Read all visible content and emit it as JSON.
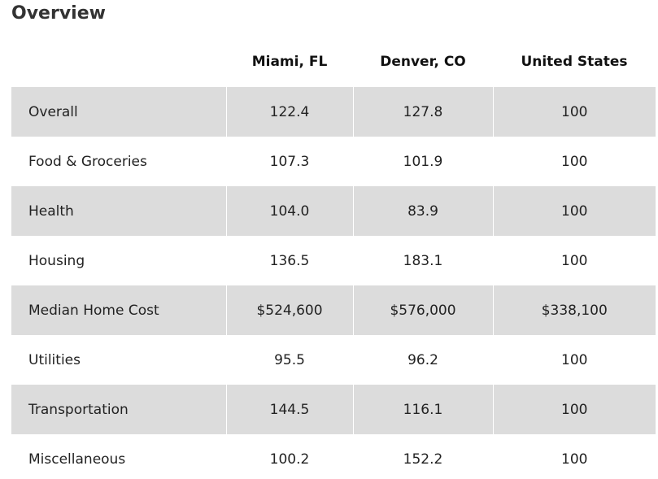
{
  "heading": {
    "title": "Overview"
  },
  "table": {
    "columns": [
      "Miami, FL",
      "Denver, CO",
      "United States"
    ],
    "rows": [
      [
        "Overall",
        "122.4",
        "127.8",
        "100"
      ],
      [
        "Food & Groceries",
        "107.3",
        "101.9",
        "100"
      ],
      [
        "Health",
        "104.0",
        "83.9",
        "100"
      ],
      [
        "Housing",
        "136.5",
        "183.1",
        "100"
      ],
      [
        "Median Home Cost",
        "$524,600",
        "$576,000",
        "$338,100"
      ],
      [
        "Utilities",
        "95.5",
        "96.2",
        "100"
      ],
      [
        "Transportation",
        "144.5",
        "116.1",
        "100"
      ],
      [
        "Miscellaneous",
        "100.2",
        "152.2",
        "100"
      ]
    ]
  }
}
